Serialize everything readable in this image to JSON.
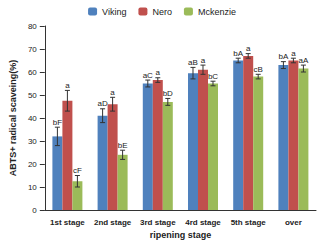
{
  "chart_data": {
    "type": "bar",
    "categories": [
      "1st stage",
      "2nd stage",
      "3rd stage",
      "4rd stage",
      "5th stage",
      "over"
    ],
    "x_label": "ripening stage",
    "y_label": "ABTS+ radical scaveing(%)",
    "ylim": [
      0,
      80
    ],
    "yticks": [
      0,
      10,
      20,
      30,
      40,
      50,
      60,
      70,
      80
    ],
    "grid": false,
    "legend": "top",
    "series": [
      {
        "name": "Viking",
        "color": "#4f81bd",
        "values": [
          32,
          41,
          55,
          59.5,
          65,
          63
        ],
        "errors": [
          4,
          3,
          1.5,
          2.5,
          1,
          1.5
        ],
        "annotations": [
          "bF",
          "aD",
          "aC",
          "aB",
          "bA",
          "bA"
        ]
      },
      {
        "name": "Nero",
        "color": "#c0504d",
        "values": [
          47.5,
          46,
          56.5,
          61,
          67,
          65
        ],
        "errors": [
          4.5,
          3,
          1,
          2,
          1,
          1
        ],
        "annotations": [
          "a",
          "a",
          "a",
          "a",
          "a",
          "a"
        ]
      },
      {
        "name": "Mckenzie",
        "color": "#9bbb59",
        "values": [
          12.5,
          24,
          47,
          55,
          58,
          61.5
        ],
        "errors": [
          2.5,
          2,
          1.5,
          1,
          1,
          1.5
        ],
        "annotations": [
          "cF",
          "bE",
          "bD",
          "bC",
          "cB",
          "aA"
        ]
      }
    ]
  }
}
